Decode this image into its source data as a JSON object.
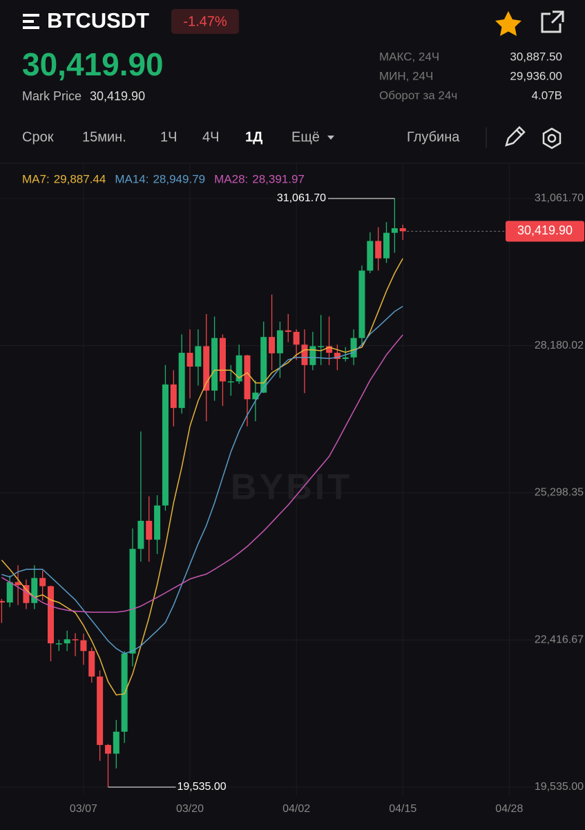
{
  "header": {
    "symbol": "BTCUSDT",
    "change": "-1.47%",
    "price": "30,419.90",
    "mark_price_label": "Mark Price",
    "mark_price": "30,419.90"
  },
  "stats": [
    {
      "label": "МАКС, 24Ч",
      "value": "30,887.50"
    },
    {
      "label": "МИН, 24Ч",
      "value": "29,936.00"
    },
    {
      "label": "Оборот за 24ч",
      "value": "4.07B"
    }
  ],
  "tabs": [
    "Срок",
    "15мин.",
    "1Ч",
    "4Ч",
    "1Д",
    "Ещё",
    "Глубина"
  ],
  "active_tab": 4,
  "chart_data": {
    "type": "candlestick",
    "watermark": "BYBIT",
    "up_color": "#20b26c",
    "down_color": "#ef454a",
    "grid": true,
    "open": [
      23180,
      23150,
      23550,
      23490,
      23140,
      23630,
      23470,
      22350,
      22350,
      22430,
      22410,
      22200,
      21700,
      20360,
      20190,
      20620,
      22150,
      24200,
      24750,
      24380,
      25050,
      27420,
      26960,
      28040,
      27770,
      28170,
      27300,
      28330,
      27480,
      27480,
      27990,
      27130,
      27260,
      28350,
      28030,
      28480,
      28450,
      28200,
      27800,
      28170,
      28170,
      28040,
      27920,
      27950,
      28330,
      29650,
      30230,
      29890,
      30390,
      30480
    ],
    "high": [
      23220,
      23680,
      23880,
      23600,
      23880,
      23780,
      23480,
      22420,
      22600,
      22550,
      22540,
      22270,
      21820,
      20380,
      20850,
      22200,
      24600,
      26500,
      25230,
      25250,
      27800,
      27700,
      28400,
      28500,
      28500,
      28800,
      28750,
      28400,
      27800,
      28200,
      28000,
      27500,
      28650,
      29180,
      28650,
      28800,
      28500,
      28500,
      28450,
      28780,
      28750,
      28200,
      28150,
      28500,
      29750,
      30400,
      30500,
      30600,
      31061.7,
      30550
    ],
    "low": [
      22750,
      23060,
      23100,
      23020,
      23020,
      23190,
      22000,
      22200,
      22200,
      22100,
      21930,
      21580,
      20050,
      19535,
      19900,
      20400,
      21900,
      23950,
      23950,
      24100,
      24950,
      26600,
      26850,
      27150,
      27400,
      26700,
      27100,
      27000,
      27200,
      27430,
      26600,
      26700,
      27250,
      27700,
      27550,
      28250,
      27900,
      27250,
      27700,
      27800,
      27800,
      27700,
      27870,
      27800,
      28180,
      29600,
      29650,
      29800,
      30000,
      30250
    ],
    "close": [
      23150,
      23550,
      23490,
      23140,
      23630,
      23470,
      22350,
      22350,
      22430,
      22410,
      22200,
      21700,
      20360,
      20190,
      20620,
      22150,
      24200,
      24750,
      24380,
      25050,
      27420,
      26960,
      28040,
      27770,
      28170,
      27300,
      28330,
      27480,
      27480,
      27990,
      27130,
      27260,
      28350,
      28030,
      28480,
      28450,
      28200,
      27800,
      28170,
      28170,
      28040,
      27920,
      27950,
      28330,
      29650,
      30230,
      29890,
      30390,
      30480,
      30419.9
    ],
    "series": [
      {
        "name": "MA7:",
        "legend_value": "29,887.44",
        "color": "#e8b53a",
        "values": [
          23980,
          23800,
          23600,
          23400,
          23250,
          23300,
          23200,
          23150,
          23050,
          22950,
          22700,
          22400,
          22050,
          21600,
          21340,
          21360,
          21750,
          22300,
          22850,
          23500,
          24250,
          25100,
          25800,
          26600,
          27100,
          27450,
          27700,
          27700,
          27700,
          27550,
          27650,
          27450,
          27450,
          27650,
          27750,
          27850,
          28000,
          28100,
          28100,
          28080,
          28150,
          28100,
          28050,
          28100,
          28150,
          28450,
          28850,
          29250,
          29600,
          29887.44
        ]
      },
      {
        "name": "MA14:",
        "legend_value": "28,949.79",
        "color": "#5b9bc9",
        "values": [
          23700,
          23650,
          23750,
          23800,
          23800,
          23800,
          23650,
          23500,
          23350,
          23200,
          23000,
          22800,
          22600,
          22400,
          22250,
          22150,
          22200,
          22300,
          22450,
          22600,
          22760,
          23100,
          23500,
          23900,
          24300,
          24655,
          25100,
          25600,
          26100,
          26500,
          26822,
          27100,
          27350,
          27550,
          27750,
          27906,
          27950,
          27950,
          27950,
          27940,
          27930,
          27950,
          28000,
          28050,
          28200,
          28407,
          28550,
          28700,
          28850,
          28949.79
        ]
      },
      {
        "name": "MA28:",
        "legend_value": "28,391.97",
        "color": "#c857b5",
        "values": [
          23640,
          23550,
          23450,
          23350,
          23250,
          23150,
          23080,
          23030,
          23000,
          22980,
          22970,
          22960,
          22960,
          22960,
          22960,
          22980,
          23020,
          23080,
          23165,
          23250,
          23340,
          23430,
          23520,
          23610,
          23660,
          23706,
          23800,
          23900,
          24000,
          24120,
          24248,
          24400,
          24550,
          24720,
          24890,
          25060,
          25250,
          25440,
          25630,
          25820,
          26009,
          26300,
          26600,
          26900,
          27200,
          27500,
          27750,
          28000,
          28200,
          28391.97
        ]
      }
    ],
    "ylim": [
      19372,
      31739
    ],
    "yticks": [
      {
        "value": 31061.7,
        "label": "31,061.70"
      },
      {
        "value": 28180.02,
        "label": "28,180.02"
      },
      {
        "value": 25298.35,
        "label": "25,298.35"
      },
      {
        "value": 22416.67,
        "label": "22,416.67"
      },
      {
        "value": 19535,
        "label": "19,535.00"
      }
    ],
    "xlim": [
      -0.2,
      62.9
    ],
    "xticks": [
      {
        "value": 10,
        "label": "03/07"
      },
      {
        "value": 23,
        "label": "03/20"
      },
      {
        "value": 36,
        "label": "04/02"
      },
      {
        "value": 49,
        "label": "04/15"
      },
      {
        "value": 62,
        "label": "04/28"
      }
    ],
    "high_marker": {
      "index": 48,
      "value": 31061.7,
      "label": "31,061.70"
    },
    "low_marker": {
      "index": 13,
      "value": 19535,
      "label": "19,535.00"
    },
    "last_price": {
      "value": 30419.9,
      "label": "30,419.90"
    }
  }
}
